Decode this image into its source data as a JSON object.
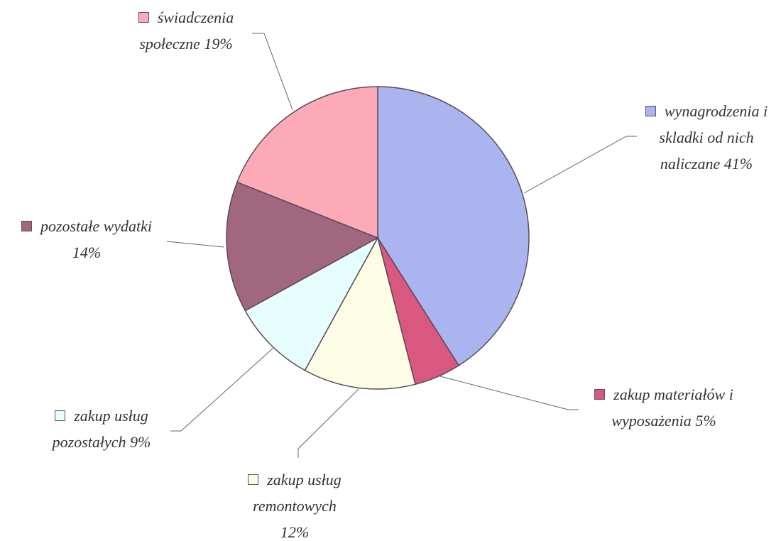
{
  "chart_data": {
    "type": "pie",
    "categories": [
      "wynagrodzenia i skladki od nich naliczane",
      "zakup materiałów i wyposażenia",
      "zakup usług remontowych",
      "zakup usług pozostałych",
      "pozostałe wydatki",
      "świadczenia społeczne"
    ],
    "values": [
      41,
      5,
      12,
      9,
      14,
      19
    ],
    "value_labels": [
      "41%",
      "5%",
      "12%",
      "9%",
      "14%",
      "19%"
    ],
    "colors": [
      "#aab4ee",
      "#d9587f",
      "#fdfde6",
      "#e6feff",
      "#a0677f",
      "#fdaab8"
    ]
  }
}
